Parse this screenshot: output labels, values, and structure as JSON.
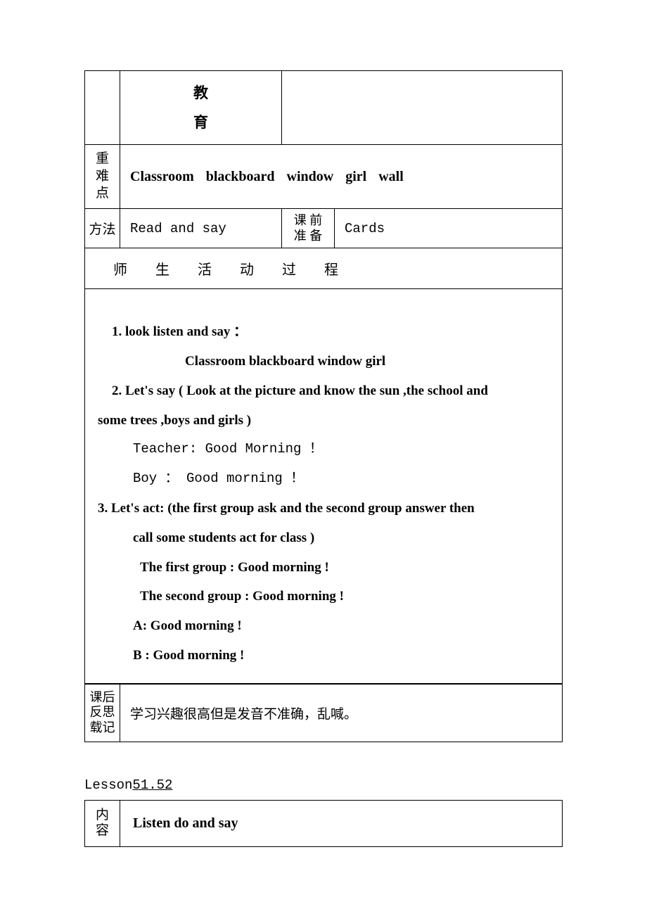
{
  "table1": {
    "education_label": "教育",
    "important_label": "重难点",
    "important_value": "Classroom   blackboard    window girl   wall",
    "method_label": "方法",
    "method_value": "Read and say",
    "prep_label": "课 前准 备",
    "prep_value": "Cards"
  },
  "activity": {
    "header": "师生活动过程",
    "lines": [
      {
        "cls": "bold-line indent-1",
        "text": "1. look   listen   and   say   ："
      },
      {
        "cls": "bold-line indent-4",
        "text": "Classroom   blackboard   window   girl"
      },
      {
        "cls": "bold-line indent-1",
        "text": "2. Let's say ( Look at the picture and know the sun ,the school and"
      },
      {
        "cls": "bold-line",
        "text": "some trees ,boys and girls )"
      },
      {
        "cls": "mono-line indent-2",
        "text": "Teacher:  Good Morning ！"
      },
      {
        "cls": "mono-line indent-2",
        "text": " Boy ：  Good morning ！"
      },
      {
        "cls": "bold-line",
        "text": " 3. Let's act: (the first group ask and the second group answer then"
      },
      {
        "cls": "bold-line indent-2",
        "text": "call some students act for class )"
      },
      {
        "cls": "bold-line indent-3",
        "text": "The first group : Good morning !"
      },
      {
        "cls": "bold-line indent-3",
        "text": "The second group : Good morning !"
      },
      {
        "cls": "bold-line indent-2",
        "text": "A: Good morning !"
      },
      {
        "cls": "bold-line indent-2",
        "text": "B : Good morning !"
      }
    ]
  },
  "reflection": {
    "label": "课后反思载记",
    "content": "学习兴趣很高但是发音不准确，乱喊。"
  },
  "lesson": {
    "prefix": "Lesson",
    "number": "  51.52        "
  },
  "table3": {
    "content_label": "内容",
    "content_value": "Listen do and say"
  }
}
